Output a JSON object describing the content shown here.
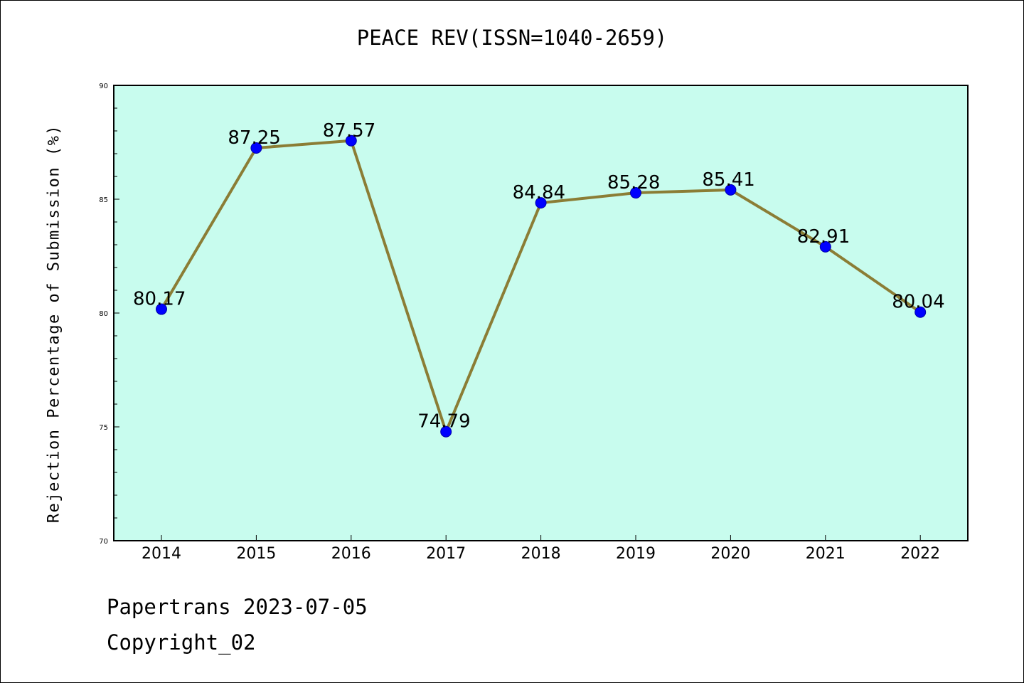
{
  "footer": {
    "line1": "Papertrans 2023-07-05",
    "line2": "Copyright_02"
  },
  "chart_data": {
    "type": "line",
    "title": "PEACE REV(ISSN=1040-2659)",
    "xlabel": "",
    "ylabel": "Rejection Percentage of Submission (%)",
    "categories": [
      "2014",
      "2015",
      "2016",
      "2017",
      "2018",
      "2019",
      "2020",
      "2021",
      "2022"
    ],
    "series": [
      {
        "values": [
          80.17,
          87.25,
          87.57,
          74.79,
          84.84,
          85.28,
          85.41,
          82.91,
          80.04
        ],
        "labels": [
          "80.17",
          "87.25",
          "87.57",
          "74.79",
          "84.84",
          "85.28",
          "85.41",
          "82.91",
          "80.04"
        ],
        "line_color": "#8b7d35",
        "marker_color": "#0000ff"
      }
    ],
    "ylim": [
      70,
      90
    ],
    "yticks": [
      "70",
      "75",
      "80",
      "85",
      "90"
    ],
    "background_color": "#c8fcee",
    "grid": false,
    "legend": "none"
  }
}
